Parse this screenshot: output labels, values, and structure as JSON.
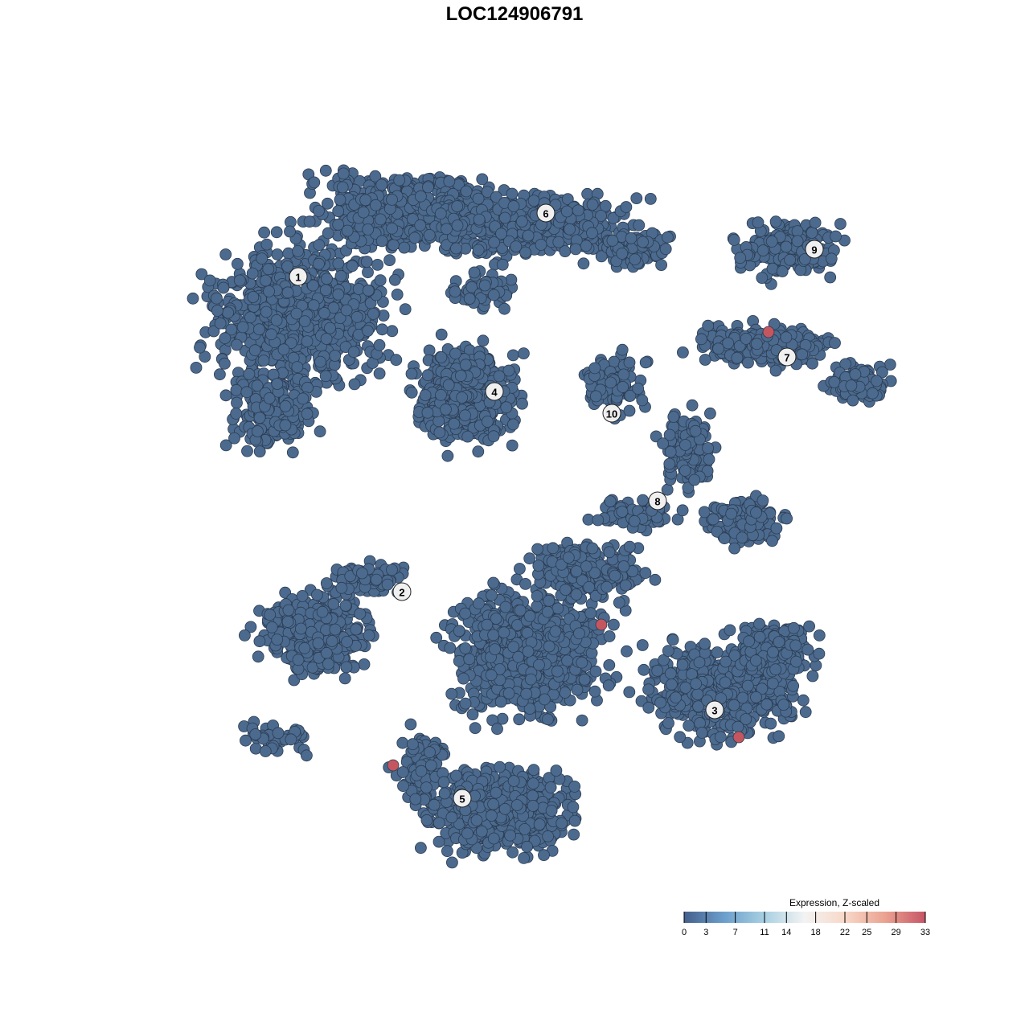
{
  "title": "LOC124906791",
  "chart_data": {
    "type": "scatter",
    "title": "LOC124906791",
    "xlabel": "",
    "ylabel": "",
    "axes_visible": false,
    "grid": false,
    "point_color_base": "#4b6a8e",
    "point_color_high": "#c4565f",
    "cluster_labels": [
      "1",
      "2",
      "3",
      "4",
      "5",
      "6",
      "7",
      "8",
      "9",
      "10"
    ],
    "colorbar": {
      "title": "Expression, Z-scaled",
      "min": 0,
      "max": 33,
      "ticks": [
        "0",
        "3",
        "7",
        "11",
        "14",
        "18",
        "22",
        "25",
        "29",
        "33"
      ],
      "tick_values": [
        0,
        3,
        7,
        11,
        14,
        18,
        22,
        25,
        29,
        33
      ],
      "colors": [
        "#455f8c",
        "#6c9fcc",
        "#a8d0e2",
        "#f3f3f3",
        "#f8d8c8",
        "#eba290",
        "#c65566"
      ],
      "placement": "bottom-right"
    }
  }
}
